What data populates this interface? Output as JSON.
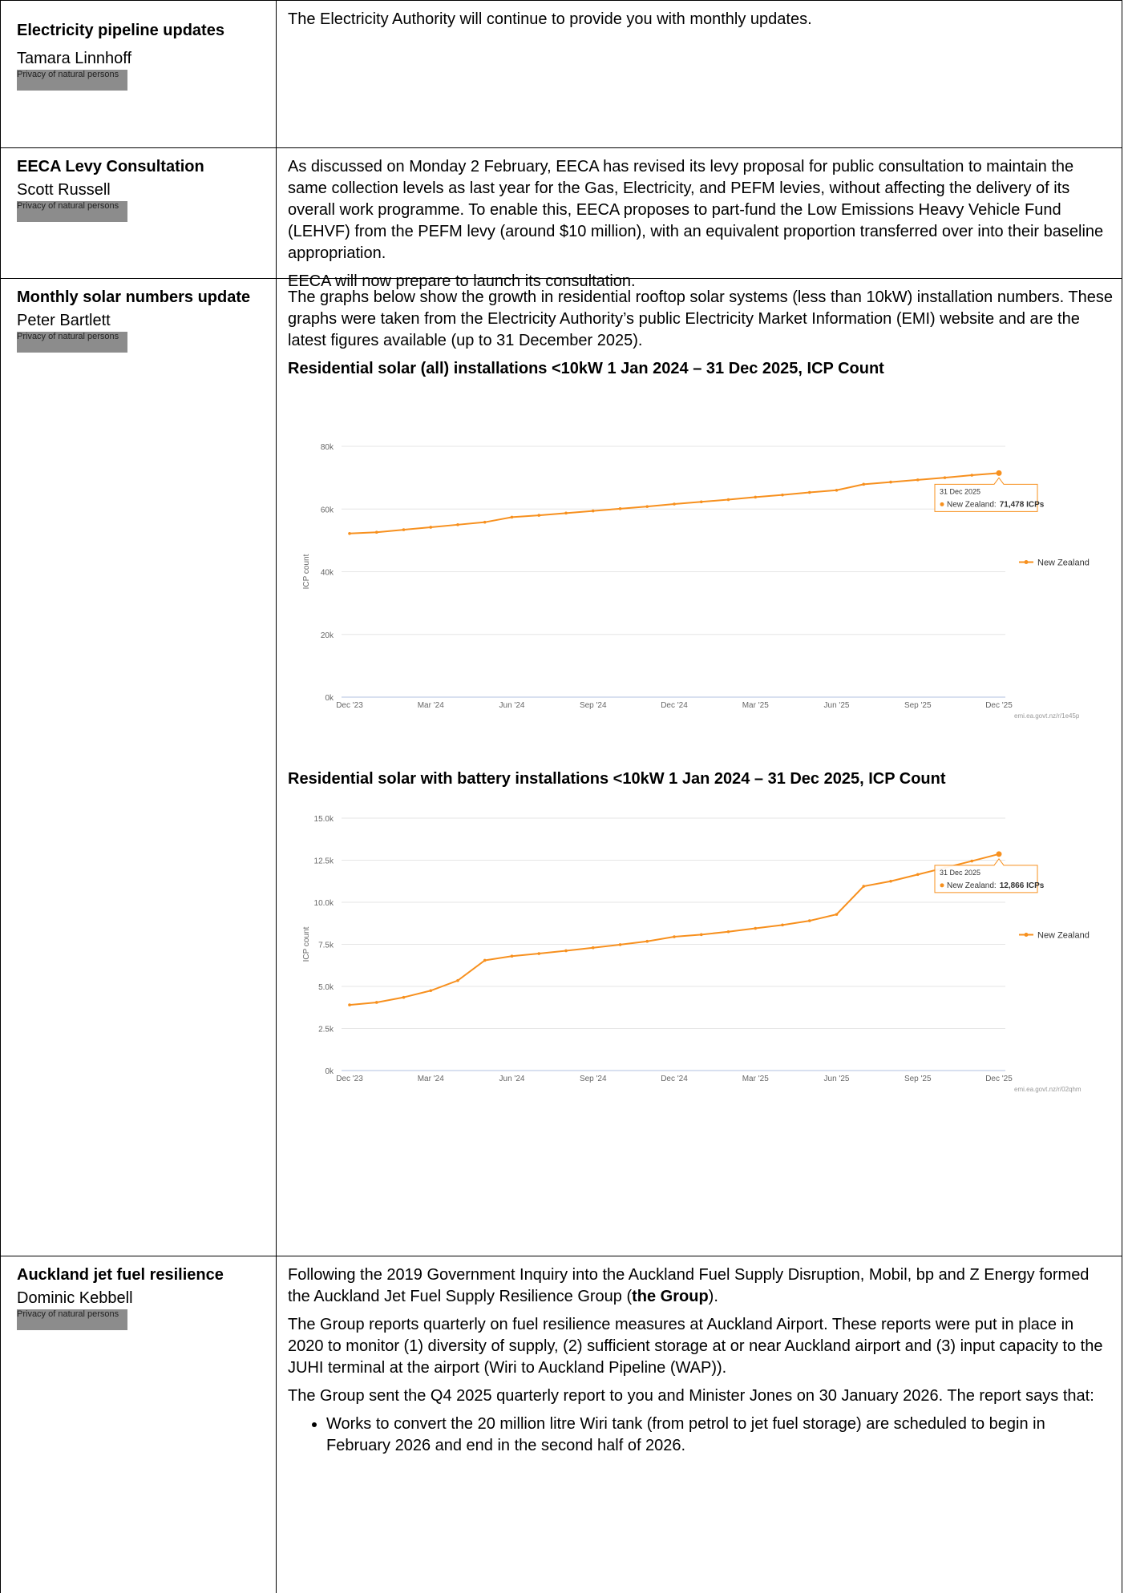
{
  "rows": [
    {
      "topic": "Electricity pipeline updates",
      "person": "Tamara Linnhoff",
      "redaction": "Privacy of natural persons",
      "paragraphs": [
        "The Electricity Authority will continue to provide you with monthly updates."
      ]
    },
    {
      "topic": "EECA Levy Consultation",
      "person": "Scott Russell",
      "redaction": "Privacy of natural persons",
      "paragraphs": [
        "As discussed on Monday 2 February, EECA has revised its levy proposal for public consultation to maintain the same collection levels as last year for the Gas, Electricity, and PEFM levies, without affecting the delivery of its overall work programme. To enable this, EECA proposes to part-fund the Low Emissions Heavy Vehicle Fund (LEHVF) from the PEFM levy (around $10 million), with an equivalent proportion transferred over into their baseline appropriation.",
        "EECA will now prepare to launch its consultation."
      ]
    },
    {
      "topic": "Monthly solar numbers update",
      "person": "Peter Bartlett",
      "redaction": "Privacy of natural persons",
      "paragraphs": [
        "The graphs below show the growth in residential rooftop solar systems (less than 10kW) installation numbers. These graphs were taken from the Electricity Authority’s public Electricity Market Information (EMI) website and are the latest figures available (up to 31 December 2025)."
      ],
      "chart_headings": [
        "Residential solar (all) installations <10kW 1 Jan 2024 – 31 Dec 2025, ICP Count",
        "Residential solar with battery installations <10kW 1 Jan 2024 – 31 Dec 2025, ICP Count"
      ]
    },
    {
      "topic": "Auckland jet fuel resilience",
      "person": "Dominic Kebbell",
      "redaction": "Privacy of natural persons",
      "intro": [
        "Following the 2019 Government Inquiry into the Auckland Fuel Supply Disruption, Mobil, bp and Z Energy formed the Auckland Jet Fuel Supply Resilience Group (",
        "the Group",
        ")."
      ],
      "paragraphs": [
        "The Group reports quarterly on fuel resilience measures at Auckland Airport. These reports were put in place in 2020 to monitor (1) diversity of supply, (2) sufficient storage at or near Auckland airport and (3) input capacity to the JUHI terminal at the airport (Wiri to Auckland Pipeline (WAP)).",
        "The Group sent the Q4 2025 quarterly report to you and Minister Jones on 30 January 2026. The report says that:"
      ],
      "bullets": [
        "Works to convert the 20 million litre Wiri tank (from petrol to jet fuel storage) are scheduled to begin in February 2026 and end in the second half of 2026."
      ]
    }
  ],
  "chart_data": [
    {
      "type": "line",
      "y_label": "ICP count",
      "source": "emi.ea.govt.nz/r/1e45p",
      "categories": [
        "Dec '23",
        null,
        null,
        "Mar '24",
        null,
        null,
        "Jun '24",
        null,
        null,
        "Sep '24",
        null,
        null,
        "Dec '24",
        null,
        null,
        "Mar '25",
        null,
        null,
        "Jun '25",
        null,
        null,
        "Sep '25",
        null,
        null,
        "Dec '25"
      ],
      "series": [
        {
          "name": "New Zealand",
          "color": "#f7901e",
          "values": [
            52200,
            52600,
            53400,
            54200,
            55000,
            55800,
            57400,
            58000,
            58700,
            59400,
            60100,
            60800,
            61600,
            62300,
            63000,
            63800,
            64500,
            65300,
            66000,
            67900,
            68600,
            69300,
            70000,
            70800,
            71478
          ]
        }
      ],
      "ylim": [
        0,
        80000
      ],
      "yticks": [
        {
          "value": 0,
          "label": "0k"
        },
        {
          "value": 20000,
          "label": "20k"
        },
        {
          "value": 40000,
          "label": "40k"
        },
        {
          "value": 60000,
          "label": "60k"
        },
        {
          "value": 80000,
          "label": "80k"
        }
      ],
      "grid": true,
      "legend": "right",
      "tooltip": {
        "date": "31 Dec 2025",
        "text": "New Zealand:",
        "value": 71478,
        "value_label": "71,478 ICPs"
      }
    },
    {
      "type": "line",
      "y_label": "ICP count",
      "source": "emi.ea.govt.nz/r/02qhm",
      "categories": [
        "Dec '23",
        null,
        null,
        "Mar '24",
        null,
        null,
        "Jun '24",
        null,
        null,
        "Sep '24",
        null,
        null,
        "Dec '24",
        null,
        null,
        "Mar '25",
        null,
        null,
        "Jun '25",
        null,
        null,
        "Sep '25",
        null,
        null,
        "Dec '25"
      ],
      "series": [
        {
          "name": "New Zealand",
          "color": "#f7901e",
          "values": [
            3900,
            4050,
            4350,
            4750,
            5350,
            6550,
            6800,
            6950,
            7120,
            7300,
            7480,
            7680,
            7950,
            8080,
            8250,
            8450,
            8650,
            8900,
            9280,
            10950,
            11250,
            11650,
            12050,
            12450,
            12866
          ]
        }
      ],
      "ylim": [
        0,
        15000
      ],
      "yticks": [
        {
          "value": 0,
          "label": "0k"
        },
        {
          "value": 2500,
          "label": "2.5k"
        },
        {
          "value": 5000,
          "label": "5.0k"
        },
        {
          "value": 7500,
          "label": "7.5k"
        },
        {
          "value": 10000,
          "label": "10.0k"
        },
        {
          "value": 12500,
          "label": "12.5k"
        },
        {
          "value": 15000,
          "label": "15.0k"
        }
      ],
      "grid": true,
      "legend": "right",
      "tooltip": {
        "date": "31 Dec 2025",
        "text": "New Zealand:",
        "value": 12866,
        "value_label": "12,866 ICPs"
      }
    }
  ]
}
